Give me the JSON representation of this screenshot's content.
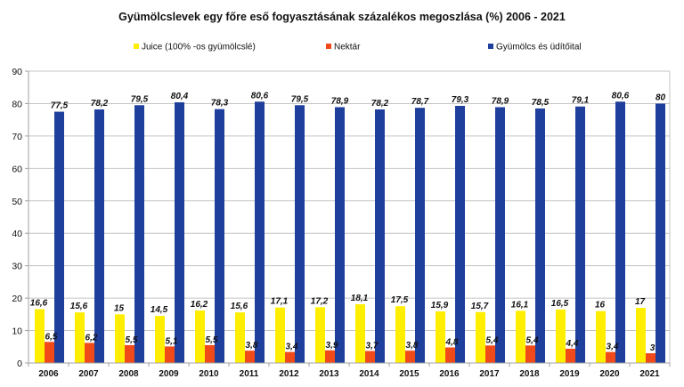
{
  "chart_data": {
    "type": "bar",
    "title": "Gyümölcslevek egy főre eső fogyasztásának százalékos megoszlása (%) 2006 - 2021",
    "xlabel": "",
    "ylabel": "",
    "ylim": [
      0,
      90
    ],
    "yticks": [
      0,
      10,
      20,
      30,
      40,
      50,
      60,
      70,
      80,
      90
    ],
    "ytick_labels": [
      "0",
      "10",
      "20",
      "30",
      "40",
      "50",
      "60",
      "70",
      "80",
      "90"
    ],
    "grid": true,
    "legend_position": "top",
    "categories": [
      "2006",
      "2007",
      "2008",
      "2009",
      "2010",
      "2011",
      "2012",
      "2013",
      "2014",
      "2015",
      "2016",
      "2017",
      "2018",
      "2019",
      "2020",
      "2021"
    ],
    "series": [
      {
        "name": "Juice (100% -os gyümölcslé)",
        "color": "#ffee00",
        "values": [
          16.6,
          15.6,
          15,
          14.5,
          16.2,
          15.6,
          17.1,
          17.2,
          18.1,
          17.5,
          15.9,
          15.7,
          16.1,
          16.5,
          16,
          17
        ],
        "labels": [
          "16,6",
          "15,6",
          "15",
          "14,5",
          "16,2",
          "15,6",
          "17,1",
          "17,2",
          "18,1",
          "17,5",
          "15,9",
          "15,7",
          "16,1",
          "16,5",
          "16",
          "17"
        ]
      },
      {
        "name": "Nektár",
        "color": "#f04a1a",
        "values": [
          6.5,
          6.2,
          5.5,
          5.1,
          5.5,
          3.8,
          3.4,
          3.9,
          3.7,
          3.8,
          4.8,
          5.4,
          5.4,
          4.4,
          3.4,
          3
        ],
        "labels": [
          "6,5",
          "6,2",
          "5,5",
          "5,1",
          "5,5",
          "3,8",
          "3,4",
          "3,9",
          "3,7",
          "3,8",
          "4,8",
          "5,4",
          "5,4",
          "4,4",
          "3,4",
          "3"
        ]
      },
      {
        "name": "Gyümölcs és üdítőital",
        "color": "#1f3f9c",
        "values": [
          77.5,
          78.2,
          79.5,
          80.4,
          78.3,
          80.6,
          79.5,
          78.9,
          78.2,
          78.7,
          79.3,
          78.9,
          78.5,
          79.1,
          80.6,
          80
        ],
        "labels": [
          "77,5",
          "78,2",
          "79,5",
          "80,4",
          "78,3",
          "80,6",
          "79,5",
          "78,9",
          "78,2",
          "78,7",
          "79,3",
          "78,9",
          "78,5",
          "79,1",
          "80,6",
          "80"
        ]
      }
    ]
  }
}
